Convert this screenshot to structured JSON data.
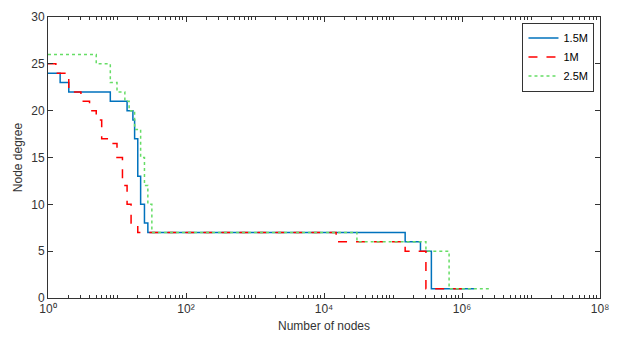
{
  "chart_data": {
    "type": "line",
    "x_label": "Number of nodes",
    "y_label": "Node degree",
    "log": "x",
    "grid": false,
    "legend": "top-right",
    "line_style": "step",
    "xlim": [
      1,
      100000000
    ],
    "ylim": [
      0,
      30
    ],
    "xticks": [
      {
        "value": 1,
        "label": "10⁰"
      },
      {
        "value": 100,
        "label": "10²"
      },
      {
        "value": 10000,
        "label": "10⁴"
      },
      {
        "value": 1000000,
        "label": "10⁶"
      },
      {
        "value": 100000000,
        "label": "10⁸"
      }
    ],
    "yticks": [
      0,
      5,
      10,
      15,
      20,
      25,
      30
    ],
    "series": [
      {
        "name": "1.5M",
        "color": "#0072bd",
        "line_style": "solid",
        "x": [
          1,
          1.5,
          2,
          8,
          14,
          17,
          18,
          20,
          22,
          25,
          28,
          150000,
          250000,
          360000,
          1500000
        ],
        "values": [
          24,
          23,
          22,
          21,
          20,
          19,
          17,
          13,
          10,
          8,
          7,
          6,
          5,
          1,
          1
        ]
      },
      {
        "name": "1M",
        "color": "#ff0000",
        "line_style": "dash",
        "x": [
          1,
          1.3,
          2,
          3,
          4,
          5,
          6,
          8,
          10,
          12,
          14,
          16,
          20,
          15000,
          150000,
          300000,
          1000000
        ],
        "values": [
          25,
          24,
          22,
          21,
          20,
          19,
          17,
          16.5,
          15,
          12,
          10,
          8,
          7,
          6,
          5,
          1,
          1
        ]
      },
      {
        "name": "2.5M",
        "color": "#66dd66",
        "line_style": "dot",
        "x": [
          1,
          5,
          8,
          10,
          13,
          15,
          18,
          22,
          25,
          28,
          32,
          30000,
          300000,
          650000,
          2500000
        ],
        "values": [
          26,
          25,
          23,
          22,
          21,
          20,
          18,
          15,
          12,
          10,
          7,
          6,
          5,
          1,
          1
        ]
      }
    ]
  }
}
